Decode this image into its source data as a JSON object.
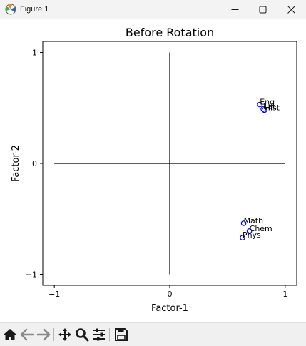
{
  "window": {
    "title": "Figure 1"
  },
  "chart_data": {
    "type": "scatter",
    "title": "Before Rotation",
    "xlabel": "Factor-1",
    "ylabel": "Factor-2",
    "xlim": [
      -1.1,
      1.1
    ],
    "ylim": [
      -1.1,
      1.1
    ],
    "xticks": [
      {
        "value": -1,
        "label": "−1"
      },
      {
        "value": 0,
        "label": "0"
      },
      {
        "value": 1,
        "label": "1"
      }
    ],
    "yticks": [
      {
        "value": -1,
        "label": "−1"
      },
      {
        "value": 0,
        "label": "0"
      },
      {
        "value": 1,
        "label": "1"
      }
    ],
    "grid": false,
    "reference_lines": [
      {
        "x": [
          -1,
          1
        ],
        "y": [
          0,
          0
        ]
      },
      {
        "x": [
          0,
          0
        ],
        "y": [
          -1,
          1
        ]
      }
    ],
    "points": [
      {
        "label": "Eng",
        "x": 0.78,
        "y": 0.53
      },
      {
        "label": "Hist",
        "x": 0.82,
        "y": 0.48
      },
      {
        "label": "Lat",
        "x": 0.81,
        "y": 0.49
      },
      {
        "label": "Math",
        "x": 0.64,
        "y": -0.54
      },
      {
        "label": "Chem",
        "x": 0.69,
        "y": -0.61
      },
      {
        "label": "Phys",
        "x": 0.63,
        "y": -0.67
      }
    ],
    "marker_color": "#0000ff",
    "line_color": "#000000"
  },
  "toolbar": {
    "items": [
      {
        "name": "home-icon"
      },
      {
        "name": "back-icon"
      },
      {
        "name": "forward-icon"
      },
      {
        "name": "pan-icon"
      },
      {
        "name": "zoom-icon"
      },
      {
        "name": "configure-subplots-icon"
      },
      {
        "name": "save-icon"
      }
    ]
  }
}
